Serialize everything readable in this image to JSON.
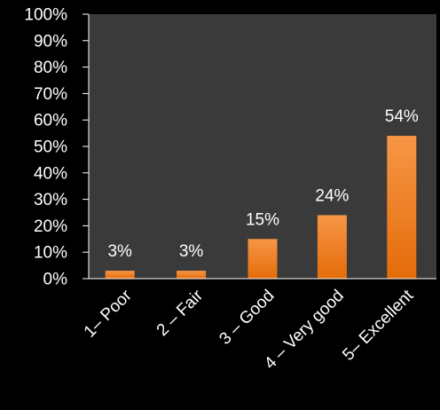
{
  "chart_data": {
    "type": "bar",
    "categories": [
      "1– Poor",
      "2 – Fair",
      "3 – Good",
      "4 – Very good",
      "5– Excellent"
    ],
    "values": [
      3,
      3,
      15,
      24,
      54
    ],
    "data_labels": [
      "3%",
      "3%",
      "15%",
      "24%",
      "54%"
    ],
    "y_tick_labels": [
      "0%",
      "10%",
      "20%",
      "30%",
      "40%",
      "50%",
      "60%",
      "70%",
      "80%",
      "90%",
      "100%"
    ],
    "ylim": [
      0,
      100
    ],
    "title": "",
    "xlabel": "",
    "ylabel": "",
    "grid": false,
    "legend": "none",
    "colors": {
      "background": "#000000",
      "plot_area": "#3a3a3a",
      "bar_top": "#f79646",
      "bar_bottom": "#e46c0a",
      "text": "#ffffff",
      "axis": "#ffffff"
    }
  }
}
